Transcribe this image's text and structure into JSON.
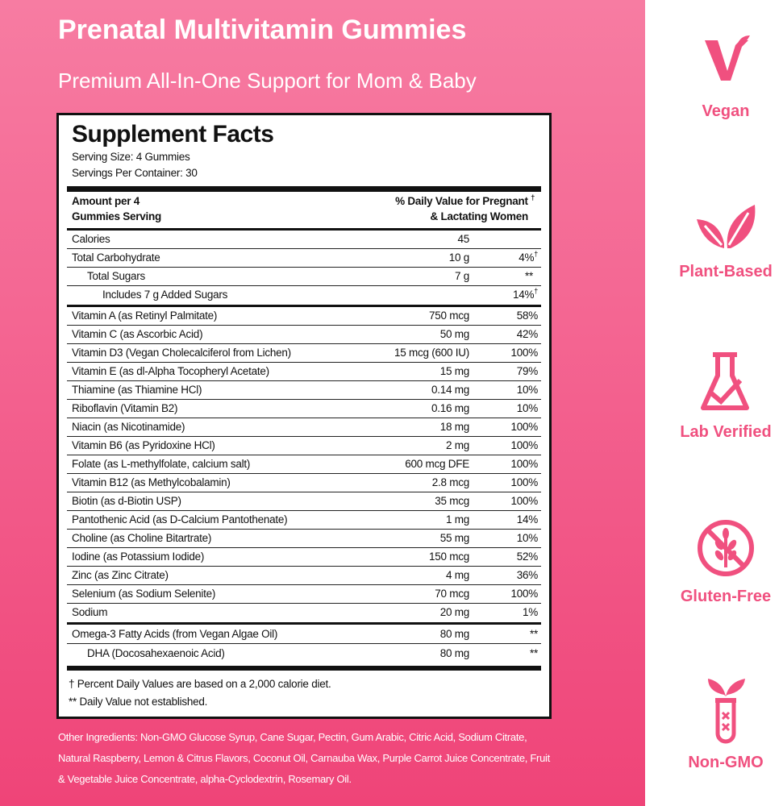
{
  "panel": {
    "title": "Prenatal Multivitamin Gummies",
    "subtitle": "Premium All-In-One Support for Mom & Baby"
  },
  "facts": {
    "heading": "Supplement Facts",
    "serving_size": "Serving Size:  4 Gummies",
    "servings_per_container": "Servings Per Container:  30",
    "column_left": [
      "Amount per 4",
      "Gummies Serving"
    ],
    "column_right": [
      "% Daily Value for Pregnant",
      "& Lactating Women"
    ],
    "column_right_note": "†",
    "groups": [
      [
        {
          "name": "Calories",
          "amount": "45"
        },
        {
          "name": "Total Carbohydrate",
          "amount": "10 g",
          "dv": "4%",
          "dv_note": "†",
          "sub": [
            {
              "name": "Total Sugars",
              "amount": "7 g",
              "dv": "**",
              "sub": [
                {
                  "name": "Includes 7 g Added Sugars",
                  "dv": "14%",
                  "dv_note": "†"
                }
              ]
            }
          ]
        }
      ],
      [
        {
          "name": "Vitamin A (as Retinyl Palmitate)",
          "amount": "750 mcg",
          "dv": "58%"
        },
        {
          "name": "Vitamin C (as Ascorbic Acid)",
          "amount": "50 mg",
          "dv": "42%"
        },
        {
          "name": "Vitamin D3 (Vegan Cholecalciferol from Lichen)",
          "amount": "15 mcg (600 IU)",
          "dv": "100%"
        },
        {
          "name": "Vitamin E (as dl-Alpha Tocopheryl Acetate)",
          "amount": "15 mg",
          "dv": "79%"
        },
        {
          "name": "Thiamine (as Thiamine HCl)",
          "amount": "0.14 mg",
          "dv": "10%"
        },
        {
          "name": "Riboflavin (Vitamin B2)",
          "amount": "0.16 mg",
          "dv": "10%"
        },
        {
          "name": "Niacin (as Nicotinamide)",
          "amount": "18 mg",
          "dv": "100%"
        },
        {
          "name": "Vitamin B6 (as Pyridoxine HCl)",
          "amount": "2 mg",
          "dv": "100%"
        },
        {
          "name": "Folate (as L-methylfolate, calcium salt)",
          "amount": "600 mcg DFE",
          "dv": "100%"
        },
        {
          "name": "Vitamin B12 (as Methylcobalamin)",
          "amount": "2.8 mcg",
          "dv": "100%"
        },
        {
          "name": "Biotin (as d-Biotin USP)",
          "amount": "35 mcg",
          "dv": "100%"
        },
        {
          "name": "Pantothenic Acid (as D-Calcium Pantothenate)",
          "amount": "1 mg",
          "dv": "14%"
        },
        {
          "name": "Choline (as Choline Bitartrate)",
          "amount": "55 mg",
          "dv": "10%"
        },
        {
          "name": "Iodine (as Potassium Iodide)",
          "amount": "150 mcg",
          "dv": "52%"
        },
        {
          "name": "Zinc (as Zinc Citrate)",
          "amount": "4 mg",
          "dv": "36%"
        },
        {
          "name": "Selenium (as Sodium Selenite)",
          "amount": "70 mcg",
          "dv": "100%"
        },
        {
          "name": "Sodium",
          "amount": "20 mg",
          "dv": "1%"
        }
      ],
      [
        {
          "name": "Omega-3 Fatty Acids (from Vegan Algae Oil)",
          "amount": "80 mg",
          "dv": "**",
          "sub": [
            {
              "name": "DHA (Docosahexaenoic Acid)",
              "amount": "80 mg",
              "dv": "**"
            }
          ]
        }
      ]
    ],
    "footnotes": [
      "† Percent Daily Values are based on a 2,000 calorie diet.",
      "** Daily Value not established."
    ]
  },
  "other_ingredients": "Other Ingredients: Non-GMO Glucose Syrup, Cane Sugar, Pectin, Gum Arabic, Citric Acid, Sodium Citrate, Natural Raspberry, Lemon & Citrus Flavors, Coconut Oil, Carnauba Wax, Purple Carrot Juice Concentrate, Fruit & Vegetable Juice Concentrate, alpha-Cyclodextrin, Rosemary Oil.",
  "badges": [
    "Vegan",
    "Plant-Based",
    "Lab Verified",
    "Gluten-Free",
    "Non-GMO"
  ]
}
